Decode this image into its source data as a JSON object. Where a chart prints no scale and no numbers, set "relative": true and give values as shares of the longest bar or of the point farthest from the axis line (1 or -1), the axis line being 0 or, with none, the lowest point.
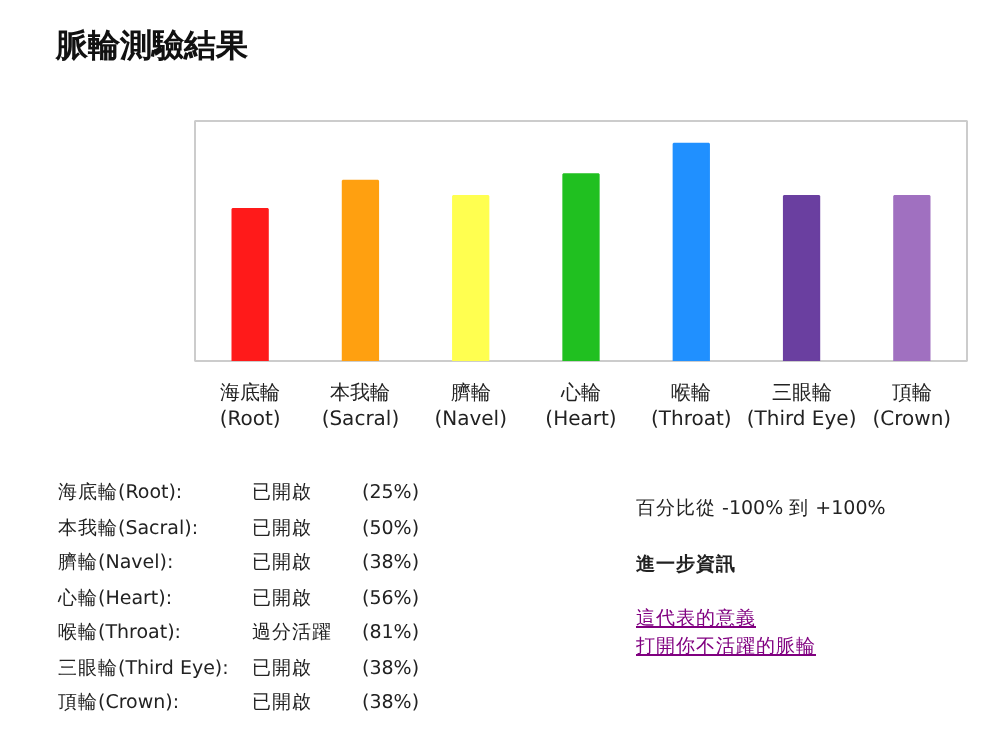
{
  "chart_data": {
    "type": "bar",
    "title": "脈輪測驗結果",
    "categories": [
      "海底輪(Root)",
      "本我輪(Sacral)",
      "臍輪(Navel)",
      "心輪(Heart)",
      "喉輪(Throat)",
      "三眼輪(Third Eye)",
      "頂輪(Crown)"
    ],
    "values": [
      0.7,
      0.83,
      0.76,
      0.86,
      1,
      0.76,
      0.76
    ],
    "colors": [
      "#ff1a1a",
      "#ffa010",
      "#ffff50",
      "#20c020",
      "#2090ff",
      "#6a3fa0",
      "#a070c0"
    ],
    "relative": true,
    "annotations": [
      "海底輪(Root):",
      "已開啟",
      "(25%)",
      "本我輪(Sacral):",
      "已開啟",
      "(50%)",
      "臍輪(Navel):",
      "已開啟",
      "(38%)",
      "心輪(Heart):",
      "已開啟",
      "(56%)",
      "喉輪(Throat):",
      "過分活躍",
      "(81%)",
      "三眼輪(Third Eye):",
      "已開啟",
      "(38%)",
      "頂輪(Crown):",
      "已開啟",
      "(38%)",
      "百分比從 -100% 到 +100%",
      "進一步資訊",
      "這代表的意義",
      "打開你不活躍的脈輪"
    ]
  }
}
